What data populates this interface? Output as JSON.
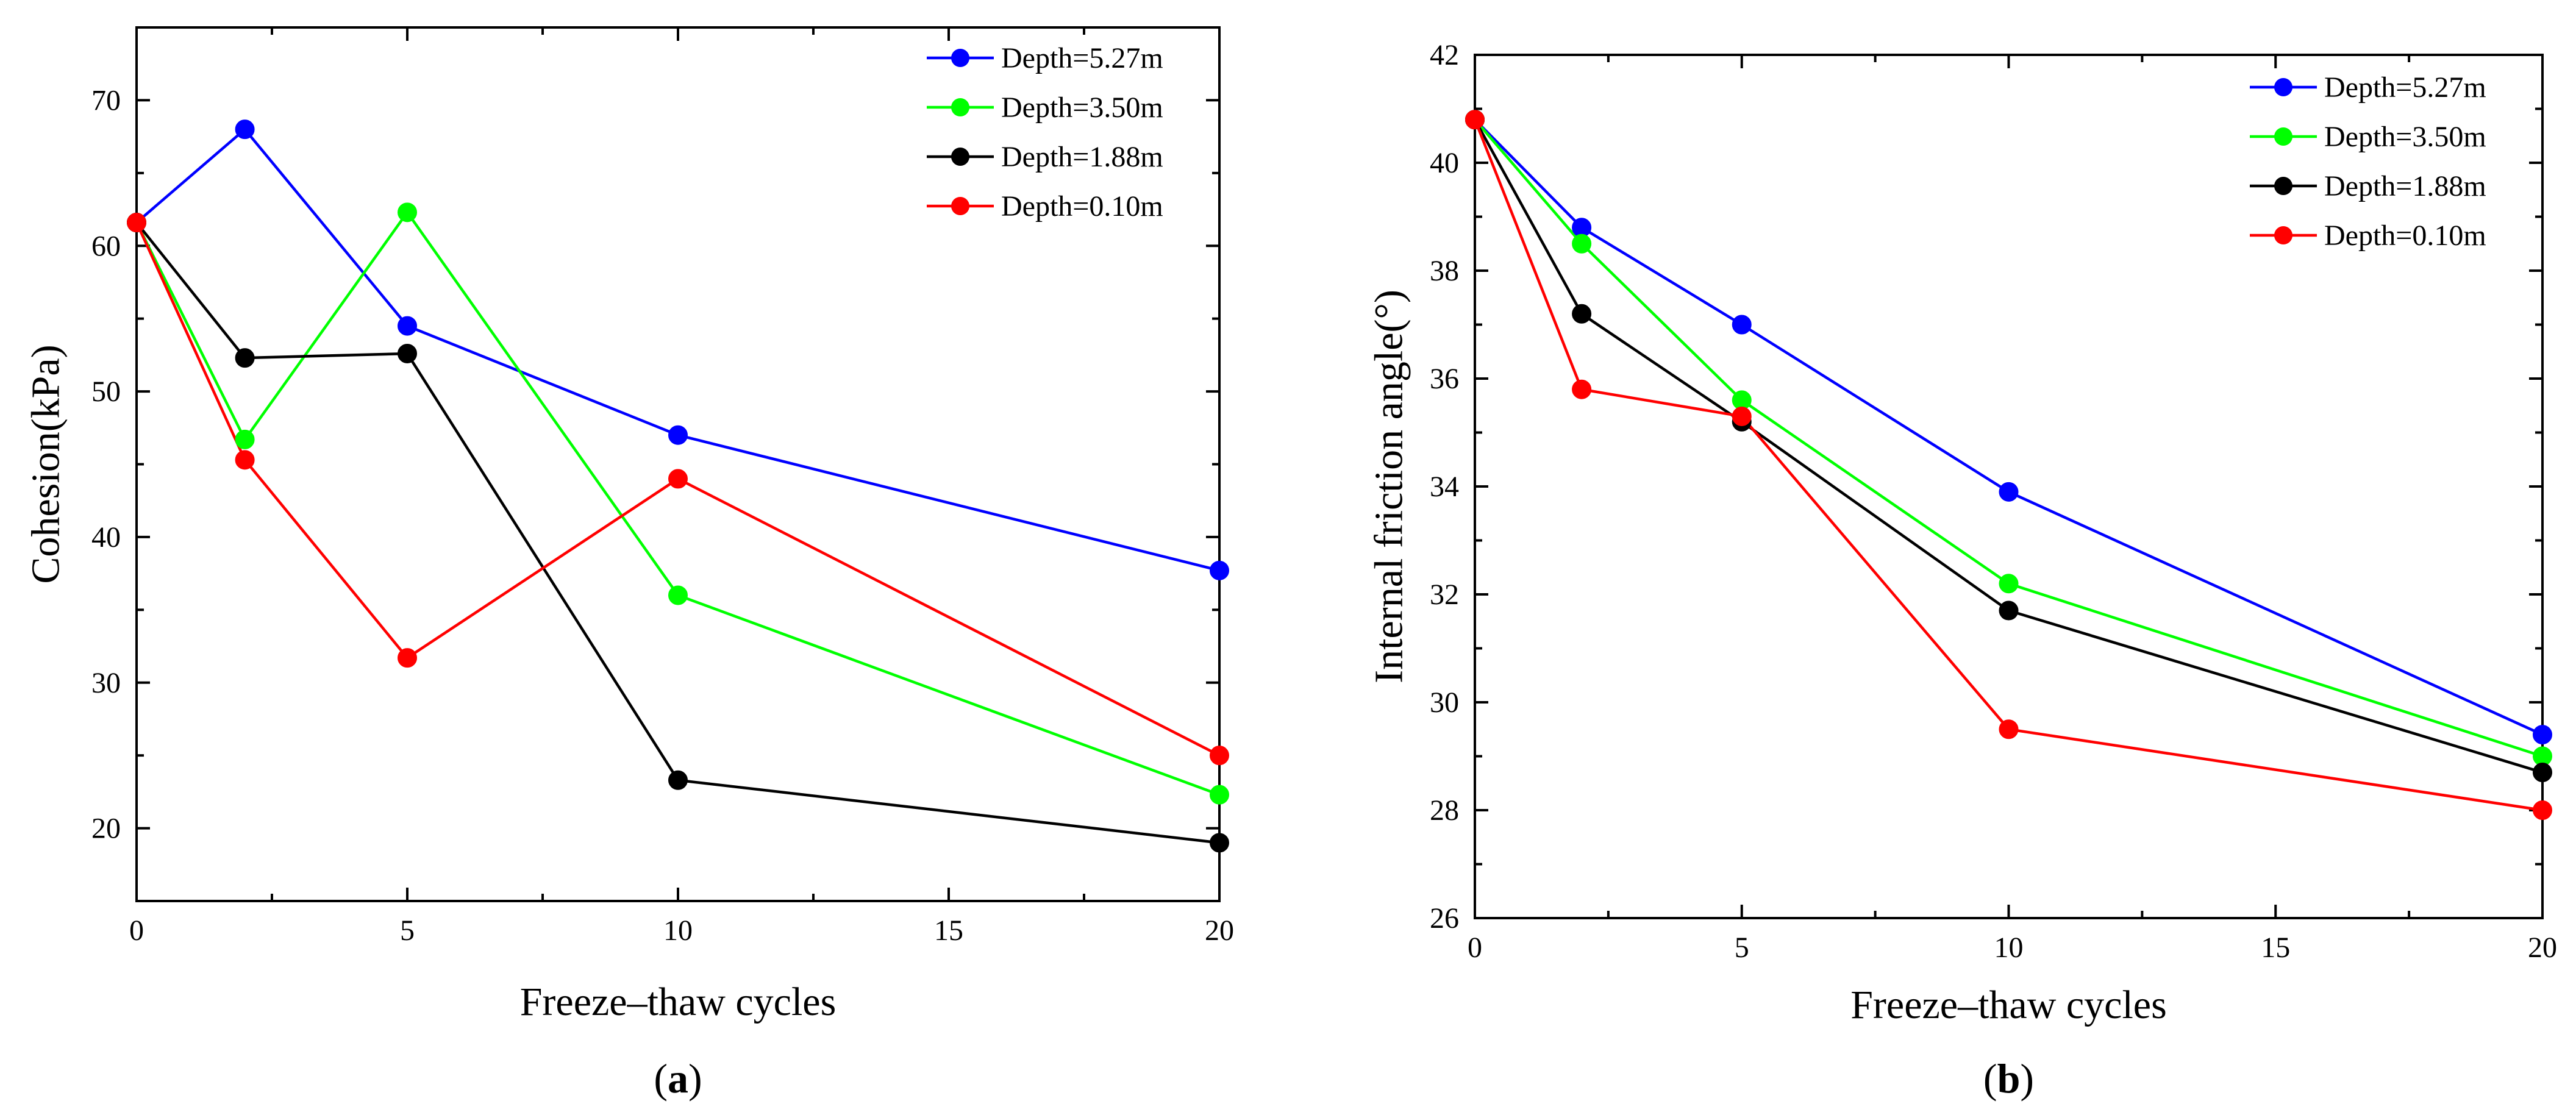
{
  "chart_data": [
    {
      "type": "line",
      "panel_label": "a",
      "xlabel": "Freeze–thaw cycles",
      "ylabel": "Cohesion(kPa)",
      "xlim": [
        0,
        20
      ],
      "ylim": [
        15,
        75
      ],
      "xticks": [
        0,
        5,
        10,
        15,
        20
      ],
      "yticks": [
        20,
        30,
        40,
        50,
        60,
        70
      ],
      "x": [
        0,
        2,
        5,
        10,
        20
      ],
      "legend_position": "top-right",
      "series": [
        {
          "name": "Depth=5.27m",
          "color": "#0000ff",
          "values": [
            61.6,
            68.0,
            54.5,
            47.0,
            37.7
          ]
        },
        {
          "name": "Depth=3.50m",
          "color": "#00ff00",
          "values": [
            61.6,
            46.7,
            62.3,
            36.0,
            22.3
          ]
        },
        {
          "name": "Depth=1.88m",
          "color": "#000000",
          "values": [
            61.6,
            52.3,
            52.6,
            23.3,
            19.0
          ]
        },
        {
          "name": "Depth=0.10m",
          "color": "#ff0000",
          "values": [
            61.6,
            45.3,
            31.7,
            44.0,
            25.0
          ]
        }
      ]
    },
    {
      "type": "line",
      "panel_label": "b",
      "xlabel": "Freeze–thaw cycles",
      "ylabel": "Internal friction angle(°)",
      "xlim": [
        0,
        20
      ],
      "ylim": [
        26,
        42
      ],
      "xticks": [
        0,
        5,
        10,
        15,
        20
      ],
      "yticks": [
        26,
        28,
        30,
        32,
        34,
        36,
        38,
        40,
        42
      ],
      "x": [
        0,
        2,
        5,
        10,
        20
      ],
      "legend_position": "top-right",
      "series": [
        {
          "name": "Depth=5.27m",
          "color": "#0000ff",
          "values": [
            40.8,
            38.8,
            37.0,
            33.9,
            29.4
          ]
        },
        {
          "name": "Depth=3.50m",
          "color": "#00ff00",
          "values": [
            40.8,
            38.5,
            35.6,
            32.2,
            29.0
          ]
        },
        {
          "name": "Depth=1.88m",
          "color": "#000000",
          "values": [
            40.8,
            37.2,
            35.2,
            31.7,
            28.7
          ]
        },
        {
          "name": "Depth=0.10m",
          "color": "#ff0000",
          "values": [
            40.8,
            35.8,
            35.3,
            29.5,
            28.0
          ]
        }
      ]
    }
  ]
}
